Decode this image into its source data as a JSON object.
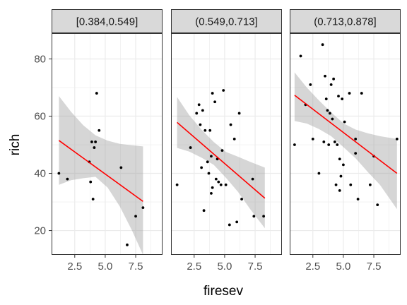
{
  "chart_data": {
    "type": "scatter",
    "xlabel": "firesev",
    "ylabel": "rich",
    "xlim": [
      0.6,
      9.7
    ],
    "ylim": [
      11.5,
      89
    ],
    "x_ticks": [
      "2.5",
      "5.0",
      "7.5"
    ],
    "y_ticks": [
      "20",
      "40",
      "60",
      "80"
    ],
    "grid": true,
    "smooth": {
      "method": "linear",
      "line_color": "#ff0000",
      "band_color": "#999999"
    },
    "point_color": "#000000",
    "panels": [
      {
        "label": "[0.384,0.549]",
        "points": [
          [
            1.2,
            40
          ],
          [
            1.9,
            38
          ],
          [
            3.7,
            44
          ],
          [
            3.8,
            37
          ],
          [
            3.9,
            51
          ],
          [
            4.0,
            31
          ],
          [
            4.1,
            49
          ],
          [
            4.2,
            51
          ],
          [
            4.3,
            68
          ],
          [
            4.5,
            55
          ],
          [
            6.3,
            42
          ],
          [
            6.8,
            15
          ],
          [
            7.5,
            25
          ],
          [
            8.1,
            28
          ]
        ],
        "fit": {
          "x": [
            1.2,
            8.1
          ],
          "y": [
            51.5,
            30.2
          ]
        },
        "band": {
          "x": [
            1.2,
            2.2,
            3.2,
            4.2,
            5.2,
            6.2,
            7.2,
            8.1
          ],
          "upper": [
            67.0,
            61.5,
            56.8,
            53.3,
            51.4,
            50.3,
            49.8,
            49.4
          ],
          "lower": [
            36.0,
            37.6,
            38.3,
            38.8,
            35.0,
            28.4,
            20.0,
            11.5
          ]
        }
      },
      {
        "label": "(0.549,0.713]",
        "points": [
          [
            1.1,
            36
          ],
          [
            2.2,
            49
          ],
          [
            2.7,
            61
          ],
          [
            2.9,
            64
          ],
          [
            3.0,
            57
          ],
          [
            3.1,
            42
          ],
          [
            3.2,
            62
          ],
          [
            3.3,
            27
          ],
          [
            3.4,
            55
          ],
          [
            3.6,
            44
          ],
          [
            3.7,
            40
          ],
          [
            3.8,
            55
          ],
          [
            3.9,
            33
          ],
          [
            3.9,
            46
          ],
          [
            4.0,
            68
          ],
          [
            4.0,
            35
          ],
          [
            4.2,
            65
          ],
          [
            4.3,
            38
          ],
          [
            4.4,
            45
          ],
          [
            4.5,
            37
          ],
          [
            4.7,
            36
          ],
          [
            4.8,
            48
          ],
          [
            4.9,
            69
          ],
          [
            5.1,
            36
          ],
          [
            5.4,
            22
          ],
          [
            5.5,
            57
          ],
          [
            5.8,
            52
          ],
          [
            6.0,
            23
          ],
          [
            6.2,
            61
          ],
          [
            6.4,
            31
          ],
          [
            7.3,
            38
          ],
          [
            7.4,
            25
          ],
          [
            8.2,
            25
          ]
        ],
        "fit": {
          "x": [
            1.1,
            8.3
          ],
          "y": [
            57.8,
            31.3
          ]
        },
        "band": {
          "x": [
            1.1,
            2.1,
            3.1,
            4.1,
            5.1,
            6.1,
            7.1,
            8.3
          ],
          "upper": [
            66.7,
            60.3,
            55.3,
            51.0,
            47.5,
            45.8,
            44.0,
            42.0
          ],
          "lower": [
            48.9,
            47.6,
            45.5,
            43.0,
            38.5,
            33.5,
            27.5,
            20.8
          ]
        }
      },
      {
        "label": "(0.713,0.878]",
        "points": [
          [
            1.0,
            50
          ],
          [
            1.5,
            81
          ],
          [
            1.9,
            64
          ],
          [
            2.3,
            71
          ],
          [
            2.5,
            52
          ],
          [
            3.0,
            40
          ],
          [
            3.3,
            85
          ],
          [
            3.4,
            51
          ],
          [
            3.5,
            74
          ],
          [
            3.6,
            66
          ],
          [
            3.7,
            62
          ],
          [
            3.8,
            50
          ],
          [
            3.9,
            61
          ],
          [
            4.0,
            71
          ],
          [
            4.1,
            59
          ],
          [
            4.2,
            73
          ],
          [
            4.3,
            51
          ],
          [
            4.4,
            36
          ],
          [
            4.5,
            50
          ],
          [
            4.6,
            67
          ],
          [
            4.7,
            45
          ],
          [
            4.7,
            34
          ],
          [
            4.8,
            39
          ],
          [
            4.9,
            66
          ],
          [
            5.0,
            43
          ],
          [
            5.1,
            58
          ],
          [
            5.5,
            68
          ],
          [
            5.6,
            36
          ],
          [
            6.0,
            47
          ],
          [
            6.0,
            52
          ],
          [
            6.2,
            31
          ],
          [
            6.5,
            68
          ],
          [
            7.2,
            36
          ],
          [
            7.5,
            46
          ],
          [
            7.8,
            29
          ],
          [
            9.4,
            52
          ]
        ],
        "fit": {
          "x": [
            1.0,
            9.4
          ],
          "y": [
            67.3,
            40.0
          ]
        },
        "band": {
          "x": [
            1.0,
            2.0,
            3.0,
            4.0,
            5.0,
            6.0,
            7.0,
            8.0,
            9.4
          ],
          "upper": [
            75.3,
            70.0,
            65.5,
            61.3,
            57.5,
            55.3,
            54.0,
            53.0,
            52.0
          ],
          "lower": [
            58.3,
            57.4,
            55.5,
            53.0,
            49.2,
            45.3,
            40.5,
            36.0,
            27.5
          ]
        }
      }
    ]
  }
}
